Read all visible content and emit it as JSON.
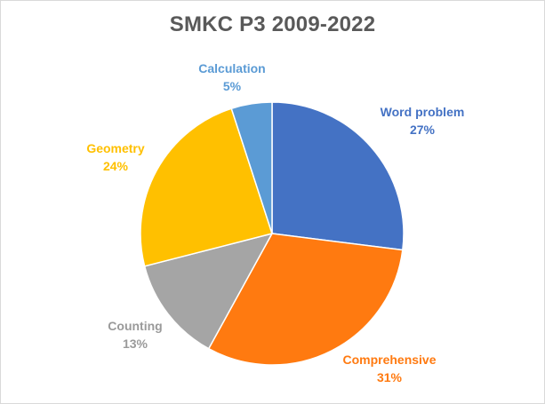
{
  "chart_data": {
    "type": "pie",
    "title": "SMKC P3 2009-2022",
    "slices": [
      {
        "name": "Word problem",
        "label": "27%",
        "value": 27,
        "color": "#4472c4"
      },
      {
        "name": "Comprehensive",
        "label": "31%",
        "value": 31,
        "color": "#ff7a10"
      },
      {
        "name": "Counting",
        "label": "13%",
        "value": 13,
        "color": "#a5a5a5"
      },
      {
        "name": "Geometry",
        "label": "24%",
        "value": 24,
        "color": "#ffc000"
      },
      {
        "name": "Calculation",
        "label": "5%",
        "value": 5,
        "color": "#5b9bd5"
      }
    ],
    "legend": "none",
    "start_angle": "12 o'clock",
    "direction": "clockwise"
  }
}
